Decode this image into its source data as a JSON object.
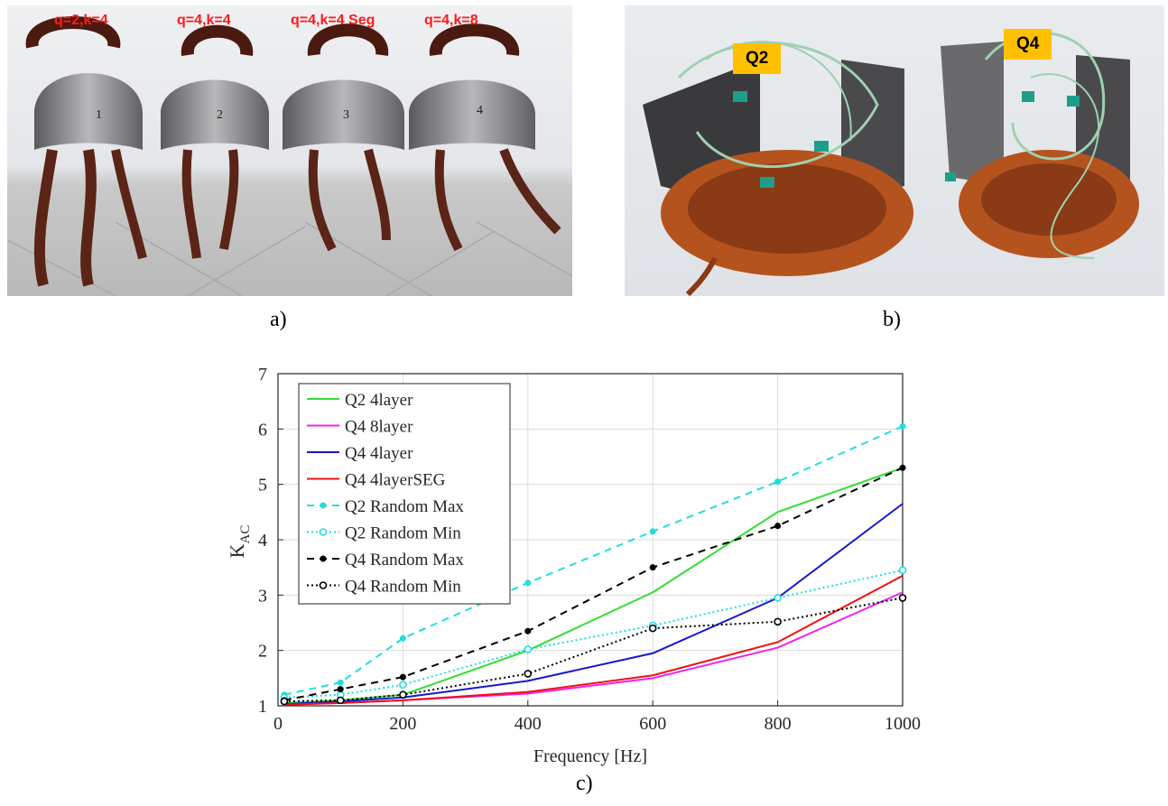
{
  "panel_a": {
    "caption": "a)",
    "stator_labels": [
      "q=2,k=4",
      "q=4,k=4",
      "q=4,k=4 Seg",
      "q=4,k=8"
    ],
    "stator_numbers": [
      "1",
      "2",
      "3",
      "4"
    ]
  },
  "panel_b": {
    "caption": "b)",
    "tags": [
      "Q2",
      "Q4"
    ]
  },
  "panel_c": {
    "caption": "c)"
  },
  "chart_data": {
    "type": "line",
    "title": "",
    "xlabel": "Frequency [Hz]",
    "ylabel_main": "K",
    "ylabel_sub": "AC",
    "xlim": [
      0,
      1000
    ],
    "ylim": [
      1,
      7
    ],
    "xticks": [
      0,
      200,
      400,
      600,
      800,
      1000
    ],
    "yticks": [
      1,
      2,
      3,
      4,
      5,
      6,
      7
    ],
    "grid": true,
    "legend_position": "top-left",
    "series": [
      {
        "name": "Q2 4layer",
        "color": "#33dd33",
        "dash": "solid",
        "marker": "none",
        "x": [
          10,
          100,
          200,
          400,
          600,
          800,
          1000
        ],
        "y": [
          1.05,
          1.1,
          1.2,
          2.0,
          3.05,
          4.5,
          5.3
        ]
      },
      {
        "name": "Q4 8layer",
        "color": "#ee22ee",
        "dash": "solid",
        "marker": "none",
        "x": [
          10,
          100,
          200,
          400,
          600,
          800,
          1000
        ],
        "y": [
          1.02,
          1.05,
          1.1,
          1.22,
          1.5,
          2.05,
          3.05
        ]
      },
      {
        "name": "Q4 4layer",
        "color": "#1818cc",
        "dash": "solid",
        "marker": "none",
        "x": [
          10,
          100,
          200,
          400,
          600,
          800,
          1000
        ],
        "y": [
          1.03,
          1.08,
          1.15,
          1.45,
          1.95,
          2.95,
          4.65
        ]
      },
      {
        "name": "Q4 4layerSEG",
        "color": "#ee1111",
        "dash": "solid",
        "marker": "none",
        "x": [
          10,
          100,
          200,
          400,
          600,
          800,
          1000
        ],
        "y": [
          1.02,
          1.05,
          1.1,
          1.25,
          1.55,
          2.15,
          3.35
        ]
      },
      {
        "name": "Q2 Random Max",
        "color": "#22dddd",
        "dash": "dashed",
        "marker": "filled",
        "x": [
          10,
          100,
          200,
          400,
          600,
          800,
          1000
        ],
        "y": [
          1.2,
          1.42,
          2.22,
          3.22,
          4.15,
          5.05,
          6.05
        ]
      },
      {
        "name": "Q2 Random Min",
        "color": "#22dddd",
        "dash": "dotted",
        "marker": "open",
        "x": [
          10,
          100,
          200,
          400,
          600,
          800,
          1000
        ],
        "y": [
          1.15,
          1.2,
          1.38,
          2.02,
          2.45,
          2.95,
          3.45
        ]
      },
      {
        "name": "Q4 Random Max",
        "color": "#000000",
        "dash": "dashed",
        "marker": "filled",
        "x": [
          10,
          100,
          200,
          400,
          600,
          800,
          1000
        ],
        "y": [
          1.1,
          1.3,
          1.52,
          2.35,
          3.5,
          4.25,
          5.3
        ]
      },
      {
        "name": "Q4 Random Min",
        "color": "#000000",
        "dash": "dotted",
        "marker": "open",
        "x": [
          10,
          100,
          200,
          400,
          600,
          800,
          1000
        ],
        "y": [
          1.08,
          1.1,
          1.2,
          1.58,
          2.4,
          2.52,
          2.95
        ]
      }
    ]
  }
}
